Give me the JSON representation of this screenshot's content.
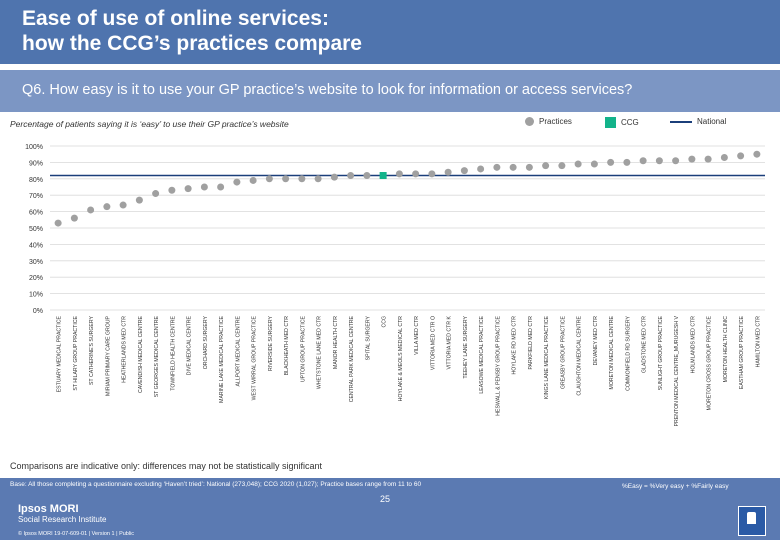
{
  "header": {
    "title": "Ease of use of online services:\nhow the CCG’s practices compare",
    "question": "Q6. How easy is it to use your GP practice’s website to look for information or access services?"
  },
  "subtitle": "Percentage of patients saying it is ‘easy’ to use their GP practice’s website",
  "legend": {
    "practices": "Practices",
    "ccg": "CCG",
    "national": "National"
  },
  "colors": {
    "practice_marker": "#a0a0a0",
    "ccg_marker": "#13b38a",
    "national_line": "#1b3f7a",
    "header_bg": "#4f74ae",
    "question_bg": "#7c96c4",
    "footer_bg": "#5b7ab2"
  },
  "chart_data": {
    "type": "scatter",
    "categories": [
      "ESTUARY MEDICAL PRACTICE",
      "ST HILARY GROUP PRACTICE",
      "ST CATHERINE'S SURGERY",
      "MIRIAM PRIMARY CARE GROUP",
      "HEATHERLANDS MED CTR",
      "CAVENDISH MEDICAL CENTRE",
      "ST GEORGES MEDICAL CENTRE",
      "TOWNFIELD HEALTH CENTRE",
      "DIVE MEDICAL CENTRE",
      "ORCHARD SURGERY",
      "MARINE LAKE MEDICAL PRACTICE",
      "ALLPORT MEDICAL CENTRE",
      "WEST WIRRAL GROUP PRACTICE",
      "RIVERSIDE SURGERY",
      "BLACKHEATH MED CTR",
      "UPTON GROUP PRACTICE",
      "WHETSTONE LANE MED CTR",
      "MANOR HEALTH CTR",
      "CENTRAL PARK MEDICAL CENTRE",
      "SPITAL SURGERY",
      "CCG",
      "HOYLAKE & MEOLS MEDICAL CTR",
      "VILLA MED CTR",
      "VITTORIA MED CTR O",
      "VITTORIA MED CTR K",
      "TEEHEY LANE SURGERY",
      "LEASOWE MEDICAL PRACTICE",
      "HESWALL & PENSBY GROUP PRACTICE",
      "HOYLAKE RD MED CTR",
      "PARKFIELD MED CTR",
      "KINGS LANE MEDICAL PRACTICE",
      "GREASBY GROUP PRACTICE",
      "CLAUGHTON MEDICAL CENTRE",
      "DEVANEY MED CTR",
      "MORETON MEDICAL CENTRE",
      "COMMONFIELD RD SURGERY",
      "GLADSTONE MED CTR",
      "SUNLIGHT GROUP PRACTICE",
      "PRENTON MEDICAL CENTRE_MURUGESH V",
      "HOLMLANDS MED CTR",
      "MORETON CROSS GROUP PRACTICE",
      "MORETON HEALTH CLINIC",
      "EASTHAM GROUP PRACTICE",
      "HAMILTON MED CTR"
    ],
    "values": [
      53,
      56,
      61,
      63,
      64,
      67,
      71,
      73,
      74,
      75,
      75,
      78,
      79,
      80,
      80,
      80,
      80,
      81,
      82,
      82,
      82,
      83,
      83,
      83,
      84,
      85,
      86,
      87,
      87,
      87,
      88,
      88,
      89,
      89,
      90,
      90,
      91,
      91,
      91,
      92,
      92,
      93,
      94,
      95
    ],
    "highlight_category": "CCG",
    "national_value": 82,
    "yticks": [
      "0%",
      "10%",
      "20%",
      "30%",
      "40%",
      "50%",
      "60%",
      "70%",
      "80%",
      "90%",
      "100%"
    ],
    "ylim": [
      0,
      100
    ],
    "grid": true
  },
  "disclaimer": "Comparisons are indicative only: differences may not be statistically significant",
  "footer": {
    "base": "Base: All those completing a questionnaire excluding ‘Haven’t tried’: National (273,048); CCG 2020 (1,027); Practice bases range from 11 to 60",
    "easy_definition": "%Easy = %Very easy + %Fairly easy",
    "logo_name": "Ipsos MORI",
    "logo_sub": "Social Research Institute",
    "copyright": "© Ipsos MORI      19-07-609-01 | Version 1 | Public",
    "page_number": "25"
  }
}
